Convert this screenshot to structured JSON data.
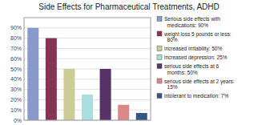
{
  "chart_data": {
    "type": "bar",
    "title": "Side Effects for Pharmaceutical Treatments, ADHD",
    "categories": [
      "Serious side effects with\n  medications: 90%",
      "weight loss 5 pounds or less:\n  80%",
      "increased irritability: 50%",
      "increased depression: 25%",
      "serious side effects at 6\n  months: 50%",
      "serious side effects at 2 years:\n  15%",
      "intolerant to medication: 7%"
    ],
    "values": [
      90,
      80,
      50,
      25,
      50,
      15,
      7
    ],
    "colors": [
      "#8899cc",
      "#883355",
      "#cccc99",
      "#aadddd",
      "#553366",
      "#dd8888",
      "#335588"
    ],
    "ylim": [
      0,
      100
    ],
    "yticks": [
      {
        "value": 0,
        "label": "0%"
      },
      {
        "value": 10,
        "label": "10%"
      },
      {
        "value": 20,
        "label": "20%"
      },
      {
        "value": 30,
        "label": "30%"
      },
      {
        "value": 40,
        "label": "40%"
      },
      {
        "value": 50,
        "label": "50%"
      },
      {
        "value": 60,
        "label": "60%"
      },
      {
        "value": 70,
        "label": "70%"
      },
      {
        "value": 80,
        "label": "80%"
      },
      {
        "value": 90,
        "label": "90%"
      }
    ],
    "grid": true,
    "legend": "right",
    "tick_labels": "y"
  }
}
